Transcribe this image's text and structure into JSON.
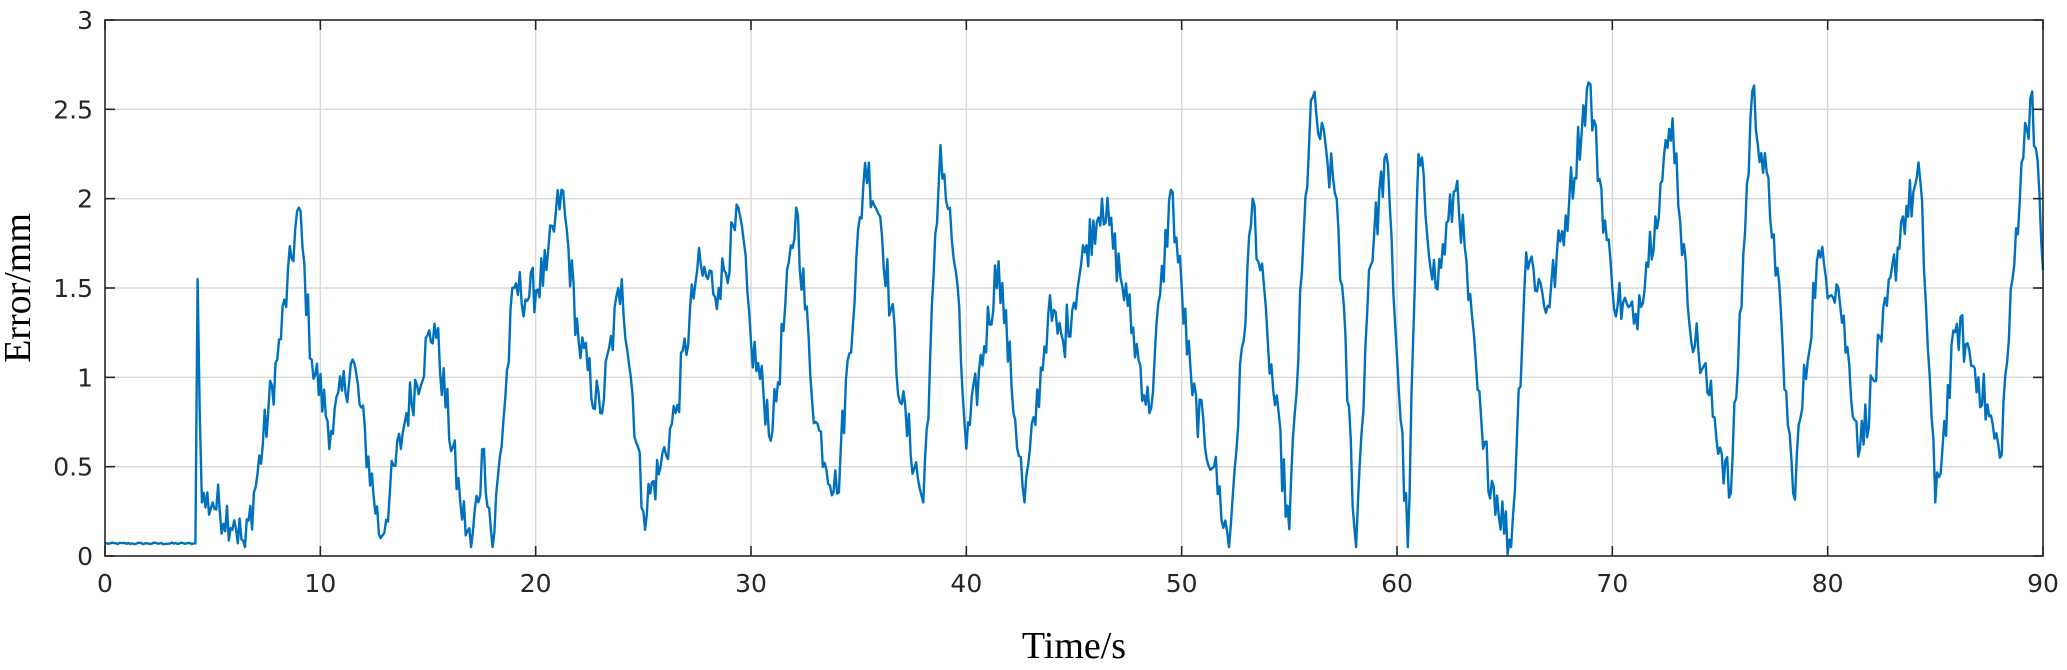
{
  "chart_data": {
    "type": "line",
    "title": "",
    "xlabel": "Time/s",
    "ylabel": "Error/mm",
    "xlim": [
      0,
      90
    ],
    "ylim": [
      0,
      3
    ],
    "xticks": [
      0,
      10,
      20,
      30,
      40,
      50,
      60,
      70,
      80,
      90
    ],
    "yticks": [
      0,
      0.5,
      1,
      1.5,
      2,
      2.5,
      3
    ],
    "xtick_labels": [
      "0",
      "10",
      "20",
      "30",
      "40",
      "50",
      "60",
      "70",
      "80",
      "90"
    ],
    "ytick_labels": [
      "0",
      "0.5",
      "1",
      "1.5",
      "2",
      "2.5",
      "3"
    ],
    "grid": true,
    "legend": "none",
    "line_color": "#0072BD",
    "series": [
      {
        "x": [
          0,
          4.2,
          4.3,
          4.5,
          5.0,
          6.0,
          6.5,
          8.0,
          9.0,
          9.6,
          10.5,
          11.5,
          12.8,
          14.0,
          15.3,
          16.5,
          17.0,
          17.6,
          18.0,
          19.0,
          19.7,
          20.5,
          21.2,
          22.0,
          23.0,
          24.0,
          25.0,
          25.8,
          26.5,
          27.5,
          28.5,
          29.5,
          30.0,
          31.0,
          32.1,
          33.0,
          34.0,
          35.3,
          36.0,
          37.0,
          38.0,
          38.8,
          39.5,
          40.0,
          41.5,
          42.7,
          43.8,
          44.5,
          45.5,
          46.3,
          47.5,
          48.5,
          49.5,
          50.5,
          51.5,
          52.2,
          53.3,
          54.0,
          55.0,
          56.0,
          57.2,
          58.1,
          58.7,
          59.5,
          60.5,
          61.0,
          61.8,
          62.8,
          64.0,
          65.3,
          66.0,
          67.0,
          68.0,
          68.9,
          70.0,
          71.0,
          72.0,
          72.8,
          73.5,
          74.5,
          75.5,
          76.5,
          77.5,
          78.4,
          79.5,
          80.5,
          81.5,
          82.5,
          83.5,
          84.3,
          85.0,
          86.0,
          87.0,
          88.0,
          89.0,
          89.5,
          90.0
        ],
        "y": [
          0.07,
          0.07,
          1.55,
          0.3,
          0.3,
          0.2,
          0.05,
          1.1,
          1.95,
          1.1,
          0.7,
          1.1,
          0.1,
          0.8,
          1.3,
          0.3,
          0.05,
          0.6,
          0.05,
          1.5,
          1.45,
          1.6,
          2.05,
          1.2,
          0.8,
          1.55,
          0.25,
          0.5,
          0.8,
          1.6,
          1.5,
          1.9,
          1.2,
          0.7,
          1.95,
          0.75,
          0.35,
          2.2,
          1.9,
          0.85,
          0.3,
          2.3,
          1.6,
          0.6,
          1.65,
          0.3,
          1.35,
          1.2,
          1.7,
          2.0,
          1.4,
          0.8,
          2.05,
          0.9,
          0.5,
          0.05,
          2.0,
          1.2,
          0.15,
          2.55,
          2.0,
          0.05,
          1.6,
          2.25,
          0.05,
          2.25,
          1.5,
          2.1,
          0.6,
          0.05,
          1.7,
          1.4,
          2.0,
          2.65,
          1.5,
          1.3,
          1.9,
          2.45,
          1.4,
          0.9,
          0.35,
          2.6,
          1.8,
          0.35,
          1.65,
          1.5,
          0.6,
          1.2,
          1.9,
          2.1,
          0.3,
          1.3,
          1.0,
          0.55,
          2.2,
          2.6,
          1.6
        ]
      }
    ]
  }
}
